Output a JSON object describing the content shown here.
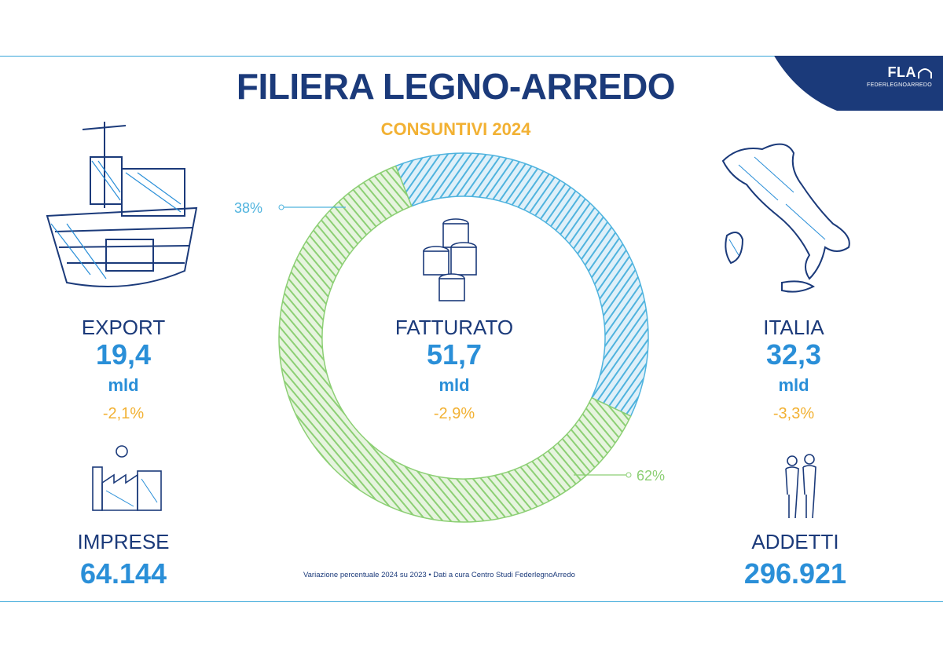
{
  "title": "FILIERA LEGNO-ARREDO",
  "subtitle": "CONSUNTIVI 2024",
  "logo": {
    "text": "FLA",
    "sub": "FEDERLEGNOARREDO"
  },
  "export": {
    "label": "EXPORT",
    "value": "19,4",
    "unit": "mld",
    "change": "-2,1%"
  },
  "fatturato": {
    "label": "FATTURATO",
    "value": "51,7",
    "unit": "mld",
    "change": "-2,9%"
  },
  "italia": {
    "label": "ITALIA",
    "value": "32,3",
    "unit": "mld",
    "change": "-3,3%"
  },
  "imprese": {
    "label": "IMPRESE",
    "value": "64.144"
  },
  "addetti": {
    "label": "ADDETTI",
    "value": "296.921"
  },
  "footnote": "Variazione percentuale 2024 su 2023 • Dati a cura Centro Studi FederlegnoArredo",
  "colors": {
    "navy": "#1b3a7a",
    "blue": "#2a8fd8",
    "orange": "#f2b133",
    "export_series": "#4fb3de",
    "italia_series": "#8ccf74"
  },
  "icons": [
    "ship-illustration",
    "coins-icon",
    "italy-map-illustration",
    "factory-icon",
    "people-icon"
  ],
  "chart_data": {
    "type": "pie",
    "categories": [
      "EXPORT",
      "ITALIA"
    ],
    "values": [
      38,
      62
    ],
    "labels": [
      "38%",
      "62%"
    ],
    "colors": [
      "#4fb3de",
      "#8ccf74"
    ]
  }
}
